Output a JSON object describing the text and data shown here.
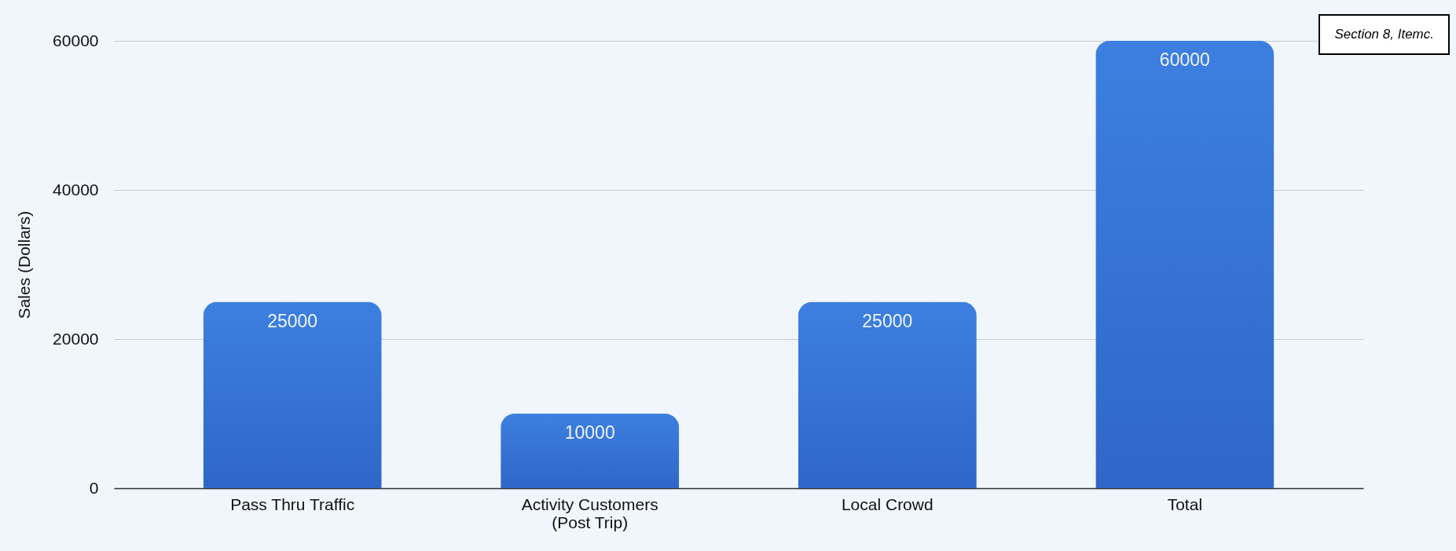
{
  "chart_data": {
    "type": "bar",
    "ylabel": "Sales (Dollars)",
    "categories": [
      "Pass Thru Traffic",
      "Activity Customers (Post Trip)",
      "Local Crowd",
      "Total"
    ],
    "values": [
      25000,
      10000,
      25000,
      60000
    ],
    "color": "#3d7fe0",
    "ylim": [
      0,
      60000
    ],
    "yticks": [
      0,
      20000,
      40000,
      60000
    ],
    "grid": "y",
    "data_labels": true,
    "annotations": [
      "Section 8, Itemc."
    ]
  }
}
